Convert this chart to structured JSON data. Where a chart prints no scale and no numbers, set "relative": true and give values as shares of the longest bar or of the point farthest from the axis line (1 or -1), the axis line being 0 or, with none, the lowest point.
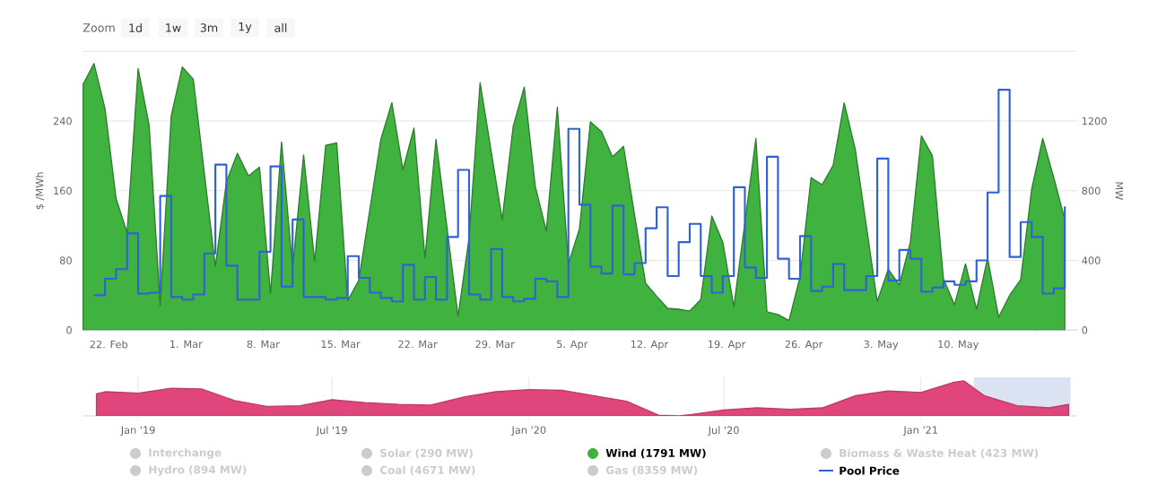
{
  "chart_data": [
    {
      "type": "area",
      "ylabel": "$ /MWh",
      "y2label": "MW",
      "xlim": [
        "2021-02-19T15:00",
        "2021-05-20T19:00"
      ],
      "ylim": [
        0,
        320
      ],
      "yticks": [
        0,
        80,
        160,
        240,
        {
          "value": 320,
          "label": null
        }
      ],
      "y2lim": [
        0,
        1600
      ],
      "y2ticks": [
        0,
        400,
        800,
        1200
      ],
      "xticks": [
        {
          "value": "2021-02-22",
          "label": "22. Feb"
        },
        {
          "value": "2021-03-01",
          "label": "1. Mar"
        },
        {
          "value": "2021-03-08",
          "label": "8. Mar"
        },
        {
          "value": "2021-03-15",
          "label": "15. Mar"
        },
        {
          "value": "2021-03-22",
          "label": "22. Mar"
        },
        {
          "value": "2021-03-29",
          "label": "29. Mar"
        },
        {
          "value": "2021-04-05",
          "label": "5. Apr"
        },
        {
          "value": "2021-04-12",
          "label": "12. Apr"
        },
        {
          "value": "2021-04-19",
          "label": "19. Apr"
        },
        {
          "value": "2021-04-26",
          "label": "26. Apr"
        },
        {
          "value": "2021-05-03",
          "label": "3. May"
        },
        {
          "value": "2021-05-10",
          "label": "10. May"
        },
        {
          "value": "2021-05-17",
          "label": null
        }
      ],
      "grid": "y",
      "legend": "bottom",
      "annotations": [
        "Zoom",
        "1d",
        "1w",
        "3m",
        "1y",
        "all",
        "Interchange",
        "Hydro (894 MW)",
        "Solar (290 MW)",
        "Coal (4671 MW)",
        "Gas (8359 MW)",
        "Biomass & Waste Heat (423 MW)"
      ],
      "x": [
        "2021-02-20T16:00",
        "2021-02-21T16:00",
        "2021-02-22T16:00",
        "2021-02-23T16:00",
        "2021-02-24T16:00",
        "2021-02-25T16:00",
        "2021-02-26T16:00",
        "2021-02-27T16:00",
        "2021-02-28T16:00",
        "2021-03-01T16:00",
        "2021-03-02T16:00",
        "2021-03-03T16:00",
        "2021-03-04T16:00",
        "2021-03-05T16:00",
        "2021-03-06T16:00",
        "2021-03-07T16:00",
        "2021-03-08T16:00",
        "2021-03-09T16:00",
        "2021-03-10T16:00",
        "2021-03-11T16:00",
        "2021-03-12T16:00",
        "2021-03-13T16:00",
        "2021-03-14T16:00",
        "2021-03-15T16:00",
        "2021-03-16T16:00",
        "2021-03-17T16:00",
        "2021-03-18T16:00",
        "2021-03-19T16:00",
        "2021-03-20T16:00",
        "2021-03-21T16:00",
        "2021-03-22T16:00",
        "2021-03-23T16:00",
        "2021-03-24T16:00",
        "2021-03-25T16:00",
        "2021-03-26T16:00",
        "2021-03-27T16:00",
        "2021-03-28T16:00",
        "2021-03-29T16:00",
        "2021-03-30T16:00",
        "2021-03-31T16:00",
        "2021-04-01T16:00",
        "2021-04-02T16:00",
        "2021-04-03T16:00",
        "2021-04-04T16:00",
        "2021-04-05T16:00",
        "2021-04-06T16:00",
        "2021-04-07T16:00",
        "2021-04-08T16:00",
        "2021-04-09T16:00",
        "2021-04-10T16:00",
        "2021-04-11T16:00",
        "2021-04-12T16:00",
        "2021-04-13T16:00",
        "2021-04-14T16:00",
        "2021-04-15T16:00",
        "2021-04-16T16:00",
        "2021-04-17T16:00",
        "2021-04-18T16:00",
        "2021-04-19T16:00",
        "2021-04-20T16:00",
        "2021-04-21T16:00",
        "2021-04-22T16:00",
        "2021-04-23T16:00",
        "2021-04-24T16:00",
        "2021-04-25T16:00",
        "2021-04-26T16:00",
        "2021-04-27T16:00",
        "2021-04-28T16:00",
        "2021-04-29T16:00",
        "2021-04-30T16:00",
        "2021-05-01T16:00",
        "2021-05-02T16:00",
        "2021-05-03T16:00",
        "2021-05-04T16:00",
        "2021-05-05T16:00",
        "2021-05-06T16:00",
        "2021-05-07T16:00",
        "2021-05-08T16:00",
        "2021-05-09T16:00",
        "2021-05-10T16:00",
        "2021-05-11T16:00",
        "2021-05-12T16:00",
        "2021-05-13T16:00",
        "2021-05-14T16:00",
        "2021-05-15T16:00",
        "2021-05-16T16:00",
        "2021-05-17T16:00",
        "2021-05-18T16:00",
        "2021-05-19T16:00"
      ],
      "series": [
        {
          "name": "Wind (1791 MW)",
          "type": "area",
          "color": "#40b240",
          "axis": "y2",
          "x": [
            "2021-02-19T16:00",
            "2021-02-20T16:00",
            "2021-02-21T16:00",
            "2021-02-22T16:00",
            "2021-02-23T16:00",
            "2021-02-24T16:00",
            "2021-02-25T16:00",
            "2021-02-26T16:00",
            "2021-02-27T16:00",
            "2021-02-28T16:00",
            "2021-03-01T16:00",
            "2021-03-03T16:00",
            "2021-03-04T16:00",
            "2021-03-05T16:00",
            "2021-03-06T16:00",
            "2021-03-07T16:00",
            "2021-03-08T16:00",
            "2021-03-09T16:00",
            "2021-03-10T16:00",
            "2021-03-11T16:00",
            "2021-03-12T16:00",
            "2021-03-13T16:00",
            "2021-03-14T16:00",
            "2021-03-15T16:00",
            "2021-03-16T16:00",
            "2021-03-18T16:00",
            "2021-03-19T16:00",
            "2021-03-20T16:00",
            "2021-03-21T16:00",
            "2021-03-22T16:00",
            "2021-03-23T16:00",
            "2021-03-25T16:00",
            "2021-03-26T16:00",
            "2021-03-27T16:00",
            "2021-03-29T16:00",
            "2021-03-30T16:00",
            "2021-03-31T16:00",
            "2021-04-01T16:00",
            "2021-04-02T16:00",
            "2021-04-03T16:00",
            "2021-04-04T16:00",
            "2021-04-05T16:00",
            "2021-04-06T16:00",
            "2021-04-07T16:00",
            "2021-04-08T16:00",
            "2021-04-09T16:00",
            "2021-04-11T16:00",
            "2021-04-12T16:00",
            "2021-04-13T16:00",
            "2021-04-14T16:00",
            "2021-04-15T16:00",
            "2021-04-16T16:00",
            "2021-04-17T16:00",
            "2021-04-18T16:00",
            "2021-04-19T16:00",
            "2021-04-21T16:00",
            "2021-04-22T16:00",
            "2021-04-23T16:00",
            "2021-04-24T16:00",
            "2021-04-25T16:00",
            "2021-04-26T16:00",
            "2021-04-27T16:00",
            "2021-04-28T16:00",
            "2021-04-29T16:00",
            "2021-04-30T16:00",
            "2021-05-02T16:00",
            "2021-05-03T16:00",
            "2021-05-04T16:00",
            "2021-05-05T16:00",
            "2021-05-06T16:00",
            "2021-05-07T16:00",
            "2021-05-08T16:00",
            "2021-05-09T16:00",
            "2021-05-10T16:00",
            "2021-05-11T16:00",
            "2021-05-12T16:00",
            "2021-05-13T16:00",
            "2021-05-14T16:00",
            "2021-05-15T16:00",
            "2021-05-16T16:00",
            "2021-05-17T16:00",
            "2021-05-18T16:00",
            "2021-05-19T16:00"
          ],
          "values": [
            1410,
            1530,
            1270,
            755,
            560,
            1500,
            1175,
            140,
            1230,
            1510,
            1440,
            365,
            850,
            1015,
            885,
            935,
            210,
            1080,
            355,
            1005,
            395,
            1060,
            1075,
            170,
            285,
            1095,
            1305,
            920,
            1160,
            415,
            1095,
            80,
            530,
            1420,
            635,
            1170,
            1395,
            825,
            570,
            1280,
            380,
            580,
            1195,
            1140,
            995,
            1055,
            270,
            195,
            125,
            120,
            110,
            175,
            655,
            505,
            135,
            1100,
            105,
            90,
            55,
            305,
            875,
            835,
            945,
            1305,
            1040,
            165,
            350,
            260,
            505,
            1115,
            1000,
            295,
            145,
            380,
            120,
            415,
            75,
            200,
            290,
            810,
            1100,
            875,
            635
          ]
        },
        {
          "name": "Pool Price",
          "type": "step",
          "color": "#2f62d4",
          "values": [
            40,
            59,
            70,
            111,
            42,
            43,
            154,
            38,
            35,
            41,
            88,
            190,
            74,
            35,
            35,
            90,
            188,
            50,
            127,
            38,
            38,
            35,
            37,
            85,
            60,
            43,
            37,
            33,
            75,
            35,
            61,
            35,
            107,
            184,
            41,
            35,
            93,
            38,
            33,
            36,
            59,
            56,
            38,
            231,
            144,
            73,
            65,
            143,
            64,
            77,
            117,
            141,
            62,
            101,
            122,
            62,
            43,
            62,
            164,
            72,
            60,
            199,
            82,
            59,
            108,
            45,
            50,
            76,
            46,
            46,
            62,
            197,
            57,
            92,
            82,
            44,
            49,
            56,
            52,
            56,
            80,
            158,
            276,
            84,
            124,
            107,
            42,
            48,
            142
          ]
        }
      ]
    },
    {
      "type": "area",
      "relative": true,
      "grid": "x",
      "tick_labels": "x",
      "xlim": [
        "2018-11-10",
        "2021-05-27"
      ],
      "xticks": [
        {
          "value": "2019-01-01",
          "label": "Jan '19"
        },
        {
          "value": "2019-07-01",
          "label": "Jul '19"
        },
        {
          "value": "2020-01-01",
          "label": "Jan '20"
        },
        {
          "value": "2020-07-01",
          "label": "Jul '20"
        },
        {
          "value": "2021-01-01",
          "label": "Jan '21"
        }
      ],
      "bands": [
        {
          "axis": "x",
          "from": "2021-02-19T15:00",
          "to": "2021-05-20T19:00",
          "color": "#ccd6eb"
        }
      ],
      "series": [
        {
          "color": "#e0457b",
          "x": [
            "2018-11-23",
            "2018-12",
            "2019-01",
            "2019-02",
            "2019-03",
            "2019-04",
            "2019-05",
            "2019-06",
            "2019-07",
            "2019-08",
            "2019-09",
            "2019-10",
            "2019-11",
            "2019-12",
            "2020-01",
            "2020-02",
            "2020-03",
            "2020-04",
            "2020-05",
            "2020-05-20",
            "2020-06",
            "2020-07",
            "2020-08",
            "2020-09",
            "2020-10",
            "2020-11",
            "2020-12",
            "2021-01",
            "2021-02",
            "2021-02-10",
            "2021-03",
            "2021-04",
            "2021-05",
            "2021-05-19"
          ],
          "values": [
            0.63,
            0.69,
            0.65,
            0.79,
            0.77,
            0.44,
            0.27,
            0.29,
            0.46,
            0.38,
            0.33,
            0.31,
            0.54,
            0.69,
            0.75,
            0.73,
            0.58,
            0.42,
            0.02,
            0,
            0.04,
            0.17,
            0.23,
            0.19,
            0.23,
            0.58,
            0.71,
            0.67,
            0.96,
            1,
            0.58,
            0.29,
            0.23,
            0.33
          ]
        }
      ]
    }
  ]
}
